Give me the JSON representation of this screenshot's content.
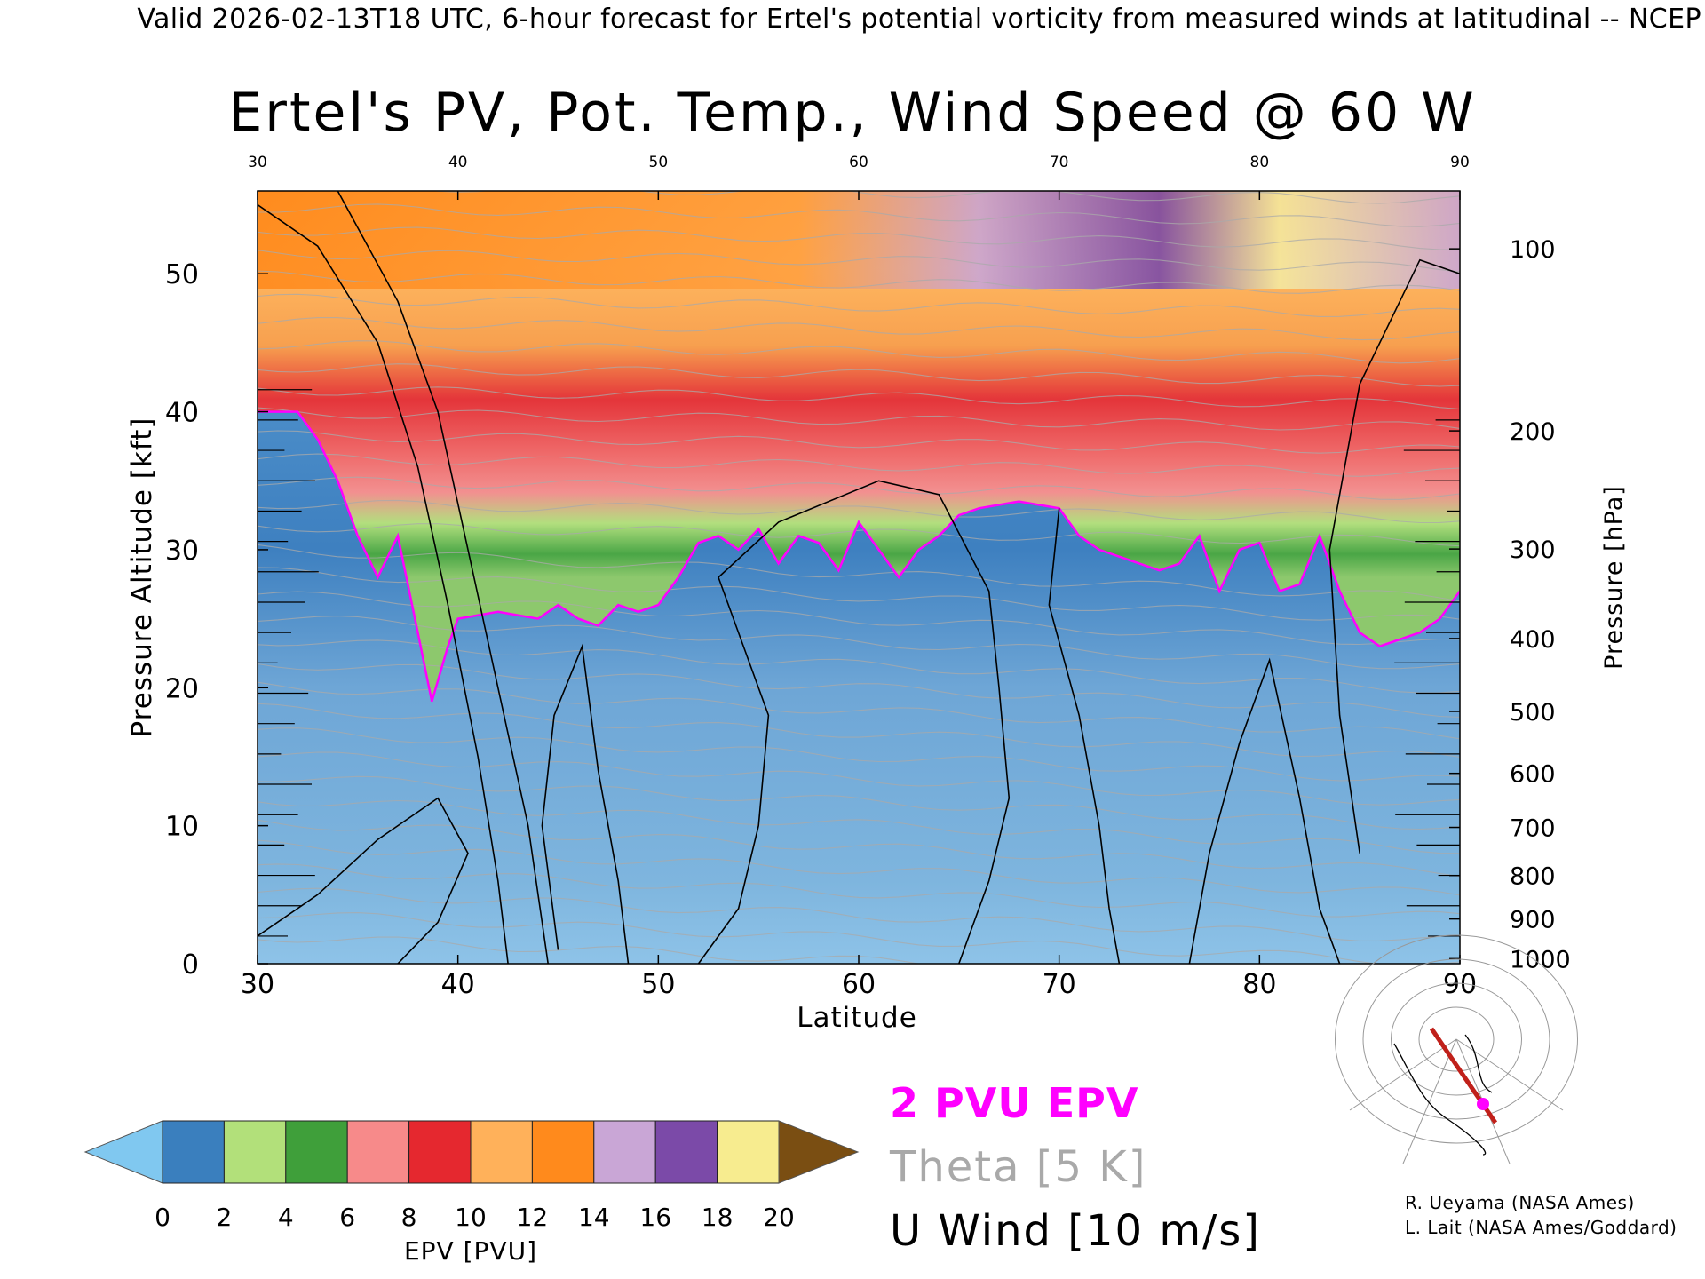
{
  "caption": "Valid 2026-02-13T18 UTC, 6-hour forecast for Ertel's potential vorticity from measured winds at latitudinal -- NCEP",
  "chart_data": {
    "type": "heatmap",
    "title": "Ertel's PV, Pot. Temp., Wind Speed @ 60 W",
    "xlabel": "Latitude",
    "ylabel": "Pressure Altitude [kft]",
    "y2label": "Pressure [hPa]",
    "xlim": [
      30,
      90
    ],
    "ylim": [
      0,
      56
    ],
    "x_ticks": [
      30,
      40,
      50,
      60,
      70,
      80,
      90
    ],
    "top_ticks": [
      "30",
      "40",
      "50",
      "60",
      "70",
      "80",
      "90"
    ],
    "y_ticks": [
      0,
      10,
      20,
      30,
      40,
      50
    ],
    "pressure_ticks": [
      {
        "hpa": 100,
        "label": "100"
      },
      {
        "hpa": 200,
        "label": "200"
      },
      {
        "hpa": 300,
        "label": "300"
      },
      {
        "hpa": 400,
        "label": "400"
      },
      {
        "hpa": 500,
        "label": "500"
      },
      {
        "hpa": 600,
        "label": "600"
      },
      {
        "hpa": 700,
        "label": "700"
      },
      {
        "hpa": 800,
        "label": "800"
      },
      {
        "hpa": 900,
        "label": "900"
      },
      {
        "hpa": 1000,
        "label": "1000"
      }
    ],
    "pv_2pvu_altitude_kft": [
      [
        30,
        40
      ],
      [
        32,
        40
      ],
      [
        33,
        38
      ],
      [
        34,
        35
      ],
      [
        35,
        31
      ],
      [
        36,
        28
      ],
      [
        37,
        31
      ],
      [
        38,
        24
      ],
      [
        38.7,
        19
      ],
      [
        39.5,
        23
      ],
      [
        40,
        25
      ],
      [
        42,
        25.5
      ],
      [
        44,
        25
      ],
      [
        45,
        26
      ],
      [
        46,
        25
      ],
      [
        47,
        24.5
      ],
      [
        48,
        26
      ],
      [
        49,
        25.5
      ],
      [
        50,
        26
      ],
      [
        51,
        28
      ],
      [
        52,
        30.5
      ],
      [
        53,
        31
      ],
      [
        54,
        30
      ],
      [
        55,
        31.5
      ],
      [
        56,
        29
      ],
      [
        57,
        31
      ],
      [
        58,
        30.5
      ],
      [
        59,
        28.5
      ],
      [
        60,
        32
      ],
      [
        61,
        30
      ],
      [
        62,
        28
      ],
      [
        63,
        30
      ],
      [
        64,
        31
      ],
      [
        65,
        32.5
      ],
      [
        66,
        33
      ],
      [
        68,
        33.5
      ],
      [
        70,
        33
      ],
      [
        71,
        31
      ],
      [
        72,
        30
      ],
      [
        73,
        29.5
      ],
      [
        75,
        28.5
      ],
      [
        76,
        29
      ],
      [
        77,
        31
      ],
      [
        78,
        27
      ],
      [
        79,
        30
      ],
      [
        80,
        30.5
      ],
      [
        81,
        27
      ],
      [
        82,
        27.5
      ],
      [
        83,
        31
      ],
      [
        84,
        27
      ],
      [
        85,
        24
      ],
      [
        86,
        23
      ],
      [
        88,
        24
      ],
      [
        89,
        25
      ],
      [
        90,
        27
      ]
    ],
    "epv_colorbar": {
      "label": "EPV [PVU]",
      "ticks": [
        "0",
        "2",
        "4",
        "6",
        "8",
        "10",
        "12",
        "14",
        "16",
        "18",
        "20"
      ],
      "colors": [
        "#80c8f0",
        "#3a7fbe",
        "#b2e07a",
        "#3f9f3a",
        "#f78a8a",
        "#e5282f",
        "#ffb15a",
        "#ff8a1c",
        "#c9a6d6",
        "#7b4aa8",
        "#f7ec8f",
        "#7a4e12"
      ]
    },
    "legend": {
      "pvu": "2 PVU EPV",
      "theta": "Theta [5 K]",
      "wind": "U Wind [10 m/s]"
    }
  },
  "credits": {
    "line1": "R. Ueyama (NASA Ames)",
    "line2": "L. Lait (NASA Ames/Goddard)"
  },
  "colors": {
    "pvu_contour": "#ff00ff",
    "theta_contour": "#a9a9a9",
    "wind_contour": "#000000",
    "section_line": "#c0201a"
  }
}
